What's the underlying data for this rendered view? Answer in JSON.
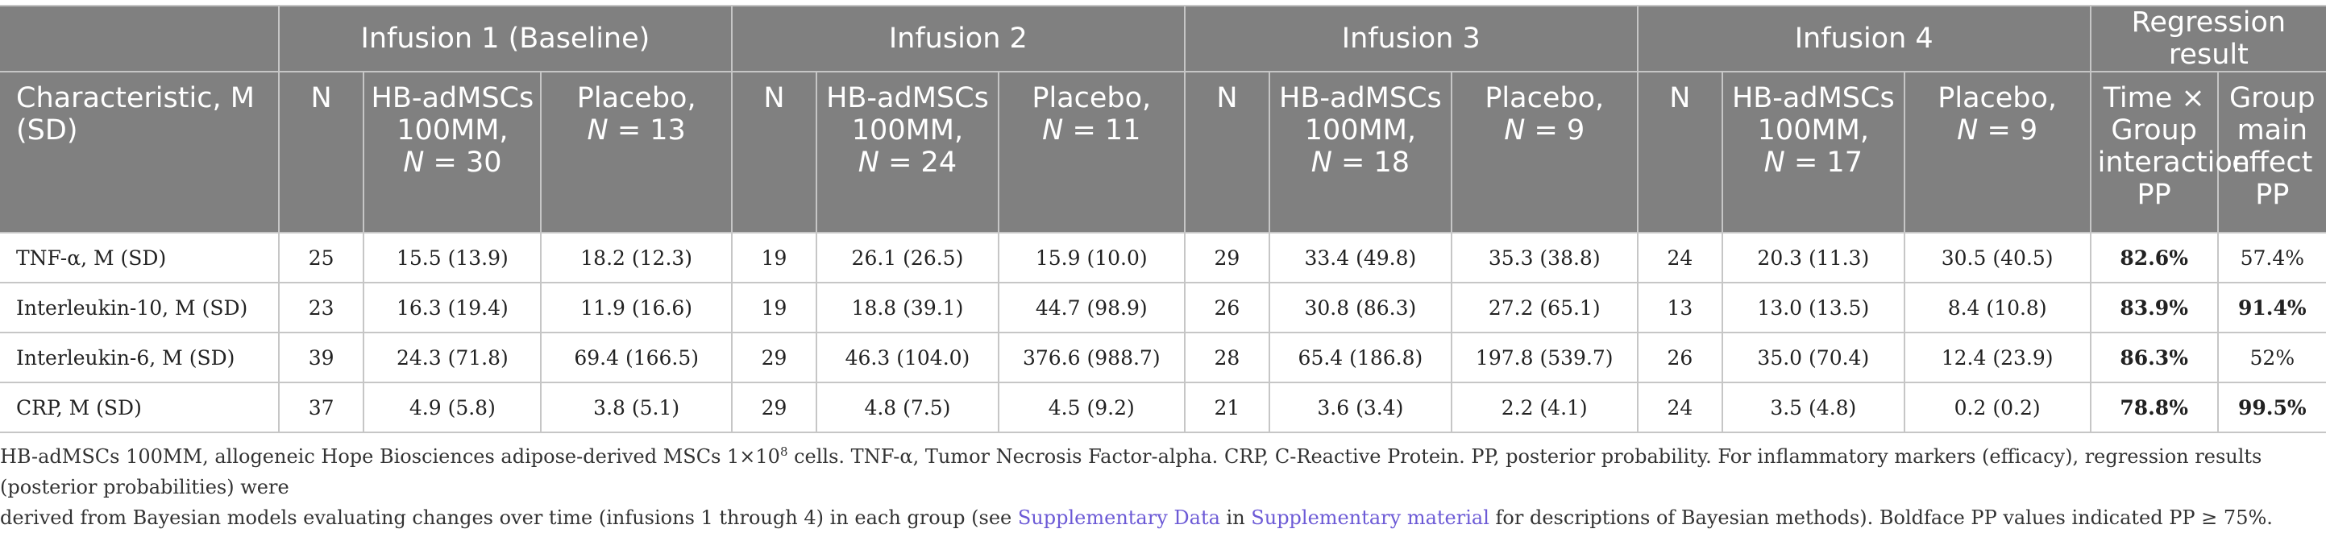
{
  "groups": [
    "Infusion 1 (Baseline)",
    "Infusion 2",
    "Infusion 3",
    "Infusion 4",
    "Regression result"
  ],
  "columns": {
    "characteristic": "Characteristic, M (SD)",
    "n": "N",
    "hb_line1": "HB-adMSCs 100MM,",
    "placebo_line1": "Placebo,",
    "n_italic": "N",
    "eq_30": " = 30",
    "eq_13": " = 13",
    "eq_24": " = 24",
    "eq_11": " = 11",
    "eq_18": " = 18",
    "eq_9": " = 9",
    "eq_17": " = 17",
    "time_group": "Time × Group interaction PP",
    "group_main": "Group main effect PP"
  },
  "rows": [
    {
      "label": "TNF-α, M (SD)",
      "cells": [
        "25",
        "15.5 (13.9)",
        "18.2 (12.3)",
        "19",
        "26.1 (26.5)",
        "15.9 (10.0)",
        "29",
        "33.4 (49.8)",
        "35.3 (38.8)",
        "24",
        "20.3 (11.3)",
        "30.5 (40.5)",
        "82.6%",
        "57.4%"
      ]
    },
    {
      "label": "Interleukin-10, M (SD)",
      "cells": [
        "23",
        "16.3 (19.4)",
        "11.9 (16.6)",
        "19",
        "18.8 (39.1)",
        "44.7 (98.9)",
        "26",
        "30.8 (86.3)",
        "27.2 (65.1)",
        "13",
        "13.0 (13.5)",
        "8.4 (10.8)",
        "83.9%",
        "91.4%"
      ]
    },
    {
      "label": "Interleukin-6, M (SD)",
      "cells": [
        "39",
        "24.3 (71.8)",
        "69.4 (166.5)",
        "29",
        "46.3 (104.0)",
        "376.6 (988.7)",
        "28",
        "65.4 (186.8)",
        "197.8 (539.7)",
        "26",
        "35.0 (70.4)",
        "12.4 (23.9)",
        "86.3%",
        "52%"
      ]
    },
    {
      "label": "CRP, M (SD)",
      "cells": [
        "37",
        "4.9 (5.8)",
        "3.8 (5.1)",
        "29",
        "4.8 (7.5)",
        "4.5 (9.2)",
        "21",
        "3.6 (3.4)",
        "2.2 (4.1)",
        "24",
        "3.5 (4.8)",
        "0.2 (0.2)",
        "78.8%",
        "99.5%"
      ]
    }
  ],
  "notes": {
    "line1_a": "HB-adMSCs 100MM, allogeneic Hope Biosciences adipose-derived MSCs 1×10",
    "line1_sup": "8",
    "line1_b": " cells. TNF-α, Tumor Necrosis Factor-alpha. CRP, C-Reactive Protein. PP, posterior probability. For inflammatory markers (efficacy), regression results (posterior probabilities) were",
    "line2_a": "derived from Bayesian models evaluating changes over time (infusions 1 through 4) in each group (see ",
    "link1": "Supplementary Data",
    "line2_b": " in ",
    "link2": "Supplementary material",
    "line2_c": " for descriptions of Bayesian methods). Boldface PP values indicated PP ≥ 75%."
  }
}
